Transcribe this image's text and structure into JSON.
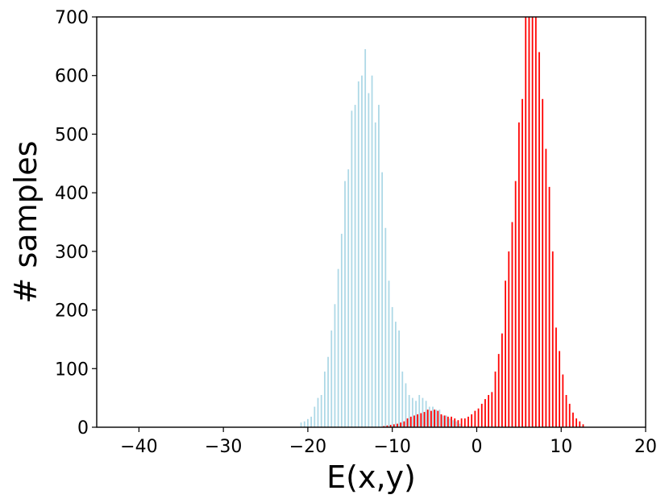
{
  "chart_data": {
    "type": "bar",
    "title": "",
    "xlabel": "E(x,y)",
    "ylabel": "# samples",
    "xlim": [
      -45,
      20
    ],
    "ylim": [
      0,
      700
    ],
    "grid": false,
    "xticks": [
      -40,
      -30,
      -20,
      -10,
      0,
      10,
      20
    ],
    "xtick_labels": [
      "−40",
      "−30",
      "−20",
      "−10",
      "0",
      "10",
      "20"
    ],
    "yticks": [
      0,
      100,
      200,
      300,
      400,
      500,
      600,
      700
    ],
    "ytick_labels": [
      "0",
      "100",
      "200",
      "300",
      "400",
      "500",
      "600",
      "700"
    ],
    "series": [
      {
        "color": "#add8e6",
        "x": [
          -20.8,
          -20.4,
          -20.0,
          -19.6,
          -19.2,
          -18.8,
          -18.4,
          -18.0,
          -17.6,
          -17.2,
          -16.8,
          -16.4,
          -16.0,
          -15.6,
          -15.2,
          -14.8,
          -14.4,
          -14.0,
          -13.6,
          -13.2,
          -12.8,
          -12.4,
          -12.0,
          -11.6,
          -11.2,
          -10.8,
          -10.4,
          -10.0,
          -9.6,
          -9.2,
          -8.8,
          -8.4,
          -8.0,
          -7.6,
          -7.2,
          -6.8,
          -6.4,
          -6.0,
          -5.6,
          -5.2,
          -4.8,
          -4.4,
          -4.0,
          -3.6,
          -3.2,
          -2.8,
          -2.4,
          -2.0
        ],
        "values": [
          8,
          10,
          14,
          18,
          35,
          50,
          55,
          95,
          120,
          165,
          210,
          270,
          330,
          420,
          440,
          540,
          550,
          590,
          600,
          645,
          570,
          600,
          520,
          550,
          435,
          340,
          250,
          205,
          180,
          165,
          95,
          75,
          55,
          50,
          45,
          55,
          50,
          45,
          35,
          35,
          30,
          30,
          20,
          20,
          15,
          12,
          10,
          6
        ]
      },
      {
        "color": "#ff0000",
        "x": [
          -11.0,
          -10.6,
          -10.2,
          -9.8,
          -9.4,
          -9.0,
          -8.6,
          -8.2,
          -7.8,
          -7.4,
          -7.0,
          -6.6,
          -6.2,
          -5.8,
          -5.4,
          -5.0,
          -4.6,
          -4.2,
          -3.8,
          -3.4,
          -3.0,
          -2.6,
          -2.2,
          -1.8,
          -1.4,
          -1.0,
          -0.6,
          -0.2,
          0.2,
          0.6,
          1.0,
          1.4,
          1.8,
          2.2,
          2.6,
          3.0,
          3.4,
          3.8,
          4.2,
          4.6,
          5.0,
          5.4,
          5.8,
          6.2,
          6.6,
          7.0,
          7.4,
          7.8,
          8.2,
          8.6,
          9.0,
          9.4,
          9.8,
          10.2,
          10.6,
          11.0,
          11.4,
          11.8,
          12.2,
          12.6
        ],
        "values": [
          2,
          3,
          4,
          5,
          6,
          8,
          10,
          15,
          18,
          20,
          22,
          24,
          26,
          30,
          28,
          30,
          28,
          22,
          20,
          18,
          18,
          15,
          12,
          15,
          15,
          18,
          22,
          28,
          32,
          40,
          48,
          55,
          60,
          95,
          125,
          160,
          250,
          300,
          350,
          420,
          520,
          560,
          700,
          700,
          700,
          700,
          640,
          560,
          475,
          410,
          300,
          170,
          130,
          90,
          55,
          40,
          25,
          15,
          10,
          5
        ]
      }
    ]
  }
}
